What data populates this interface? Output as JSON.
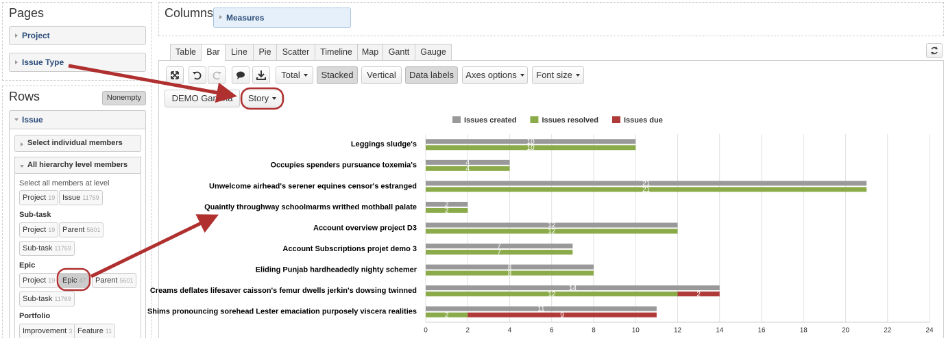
{
  "pages": {
    "title": "Pages",
    "items": [
      "Project",
      "Issue Type"
    ]
  },
  "rows": {
    "title": "Rows",
    "nonempty": "Nonempty",
    "dimension": "Issue",
    "select_individual": "Select individual members",
    "all_levels": "All hierarchy level members",
    "select_all": "Select all members at level",
    "levels": [
      {
        "members": [
          {
            "label": "Project",
            "count": 19
          },
          {
            "label": "Issue",
            "count": 11769
          }
        ]
      },
      {
        "name": "Sub-task",
        "members": [
          {
            "label": "Project",
            "count": 19
          },
          {
            "label": "Parent",
            "count": 5601
          },
          {
            "label": "Sub-task",
            "count": 11769
          }
        ]
      },
      {
        "name": "Epic",
        "members": [
          {
            "label": "Project",
            "count": 19
          },
          {
            "label": "Epic",
            "count": 47
          },
          {
            "label": "Parent",
            "count": 5601
          },
          {
            "label": "Sub-task",
            "count": 11769
          }
        ]
      },
      {
        "name": "Portfolio",
        "members": [
          {
            "label": "Improvement",
            "count": 3
          },
          {
            "label": "Feature",
            "count": 11
          }
        ]
      }
    ]
  },
  "columns": {
    "title": "Columns",
    "items": [
      "Measures"
    ]
  },
  "tabs": [
    "Table",
    "Bar",
    "Line",
    "Pie",
    "Scatter",
    "Timeline",
    "Map",
    "Gantt",
    "Gauge"
  ],
  "toolbar": [
    "Total",
    "Stacked",
    "Vertical",
    "Data labels",
    "Axes options",
    "Font size"
  ],
  "filters": [
    "DEMO Gamma",
    "Story"
  ],
  "chart_data": {
    "type": "bar",
    "orientation": "horizontal",
    "stacked": true,
    "data_labels": true,
    "legend": "top",
    "grid": true,
    "categories": [
      "Leggings sludge's",
      "Occupies spenders pursuance toxemia's",
      "Unwelcome airhead's serener equines censor's estranged",
      "Quaintly throughway schoolmarms writhed mothball palate",
      "Account overview project D3",
      "Account Subscriptions projet demo 3",
      "Eliding Punjab hardheadedly nighty schemer",
      "Creams deflates lifesaver caisson's femur dwells jerkin's dowsing twinned",
      "Shims pronouncing sorehead Lester emaciation purposely viscera realities"
    ],
    "series": [
      {
        "name": "Issues created",
        "color": "#999999",
        "stack": 0,
        "values": [
          10,
          4,
          21,
          2,
          12,
          7,
          8,
          14,
          11
        ]
      },
      {
        "name": "Issues resolved",
        "color": "#8bab4a",
        "stack": 1,
        "values": [
          10,
          4,
          21,
          2,
          12,
          7,
          8,
          12,
          2
        ]
      },
      {
        "name": "Issues due",
        "color": "#b03a3a",
        "stack": 1,
        "values": [
          null,
          null,
          null,
          null,
          null,
          null,
          null,
          2,
          9
        ]
      }
    ],
    "xlim": [
      0,
      24
    ],
    "xticks": [
      0,
      2,
      4,
      6,
      8,
      10,
      12,
      14,
      16,
      18,
      20,
      22,
      24
    ]
  }
}
